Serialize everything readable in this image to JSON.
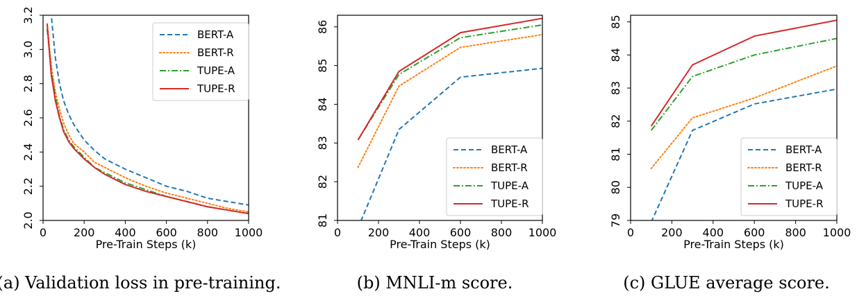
{
  "figure": {
    "captions": [
      "(a) Validation loss in pre-training.",
      "(b) MNLI-m score.",
      "(c) GLUE average score."
    ]
  },
  "colors": {
    "BERT-A": "#1f77b4",
    "BERT-R": "#ff7f0e",
    "TUPE-A": "#2ca02c",
    "TUPE-R": "#d62728"
  },
  "chart_data": [
    {
      "type": "line",
      "title": "",
      "xlabel": "Pre-Train Steps (k)",
      "ylabel": "",
      "xlim": [
        0,
        1000
      ],
      "ylim": [
        2.0,
        3.2
      ],
      "xticks": [
        0,
        200,
        400,
        600,
        800,
        1000
      ],
      "yticks": [
        2.0,
        2.2,
        2.4,
        2.6,
        2.8,
        3.0,
        3.2
      ],
      "legend_position": "top-right",
      "grid": false,
      "series": [
        {
          "name": "BERT-A",
          "style": "dashed",
          "x": [
            25,
            40,
            60,
            80,
            100,
            125,
            150,
            200,
            250,
            300,
            400,
            500,
            600,
            700,
            800,
            900,
            1000
          ],
          "y": [
            3.22,
            3.2,
            2.95,
            2.8,
            2.7,
            2.62,
            2.56,
            2.47,
            2.41,
            2.36,
            2.3,
            2.25,
            2.2,
            2.17,
            2.13,
            2.11,
            2.09
          ]
        },
        {
          "name": "BERT-R",
          "style": "dotted",
          "x": [
            20,
            40,
            60,
            80,
            100,
            125,
            150,
            200,
            250,
            300,
            400,
            500,
            600,
            700,
            800,
            900,
            1000
          ],
          "y": [
            3.15,
            2.9,
            2.75,
            2.65,
            2.57,
            2.5,
            2.45,
            2.4,
            2.34,
            2.31,
            2.25,
            2.2,
            2.16,
            2.13,
            2.1,
            2.07,
            2.05
          ]
        },
        {
          "name": "TUPE-A",
          "style": "dashdot",
          "x": [
            20,
            40,
            60,
            80,
            100,
            125,
            150,
            200,
            250,
            300,
            400,
            500,
            600,
            700,
            800,
            900,
            1000
          ],
          "y": [
            3.12,
            2.87,
            2.72,
            2.61,
            2.53,
            2.47,
            2.43,
            2.37,
            2.31,
            2.28,
            2.22,
            2.18,
            2.14,
            2.11,
            2.08,
            2.06,
            2.04
          ]
        },
        {
          "name": "TUPE-R",
          "style": "solid",
          "x": [
            20,
            40,
            60,
            80,
            100,
            125,
            150,
            200,
            250,
            300,
            400,
            500,
            600,
            700,
            800,
            900,
            1000
          ],
          "y": [
            3.15,
            2.85,
            2.7,
            2.6,
            2.52,
            2.46,
            2.42,
            2.36,
            2.31,
            2.27,
            2.21,
            2.17,
            2.14,
            2.11,
            2.08,
            2.06,
            2.04
          ]
        }
      ]
    },
    {
      "type": "line",
      "title": "",
      "xlabel": "Pre-Train Steps (k)",
      "ylabel": "",
      "xlim": [
        0,
        1000
      ],
      "ylim": [
        81,
        86.3
      ],
      "xticks": [
        0,
        200,
        400,
        600,
        800,
        1000
      ],
      "yticks": [
        81,
        82,
        83,
        84,
        85,
        86
      ],
      "legend_position": "bottom-right",
      "grid": false,
      "series": [
        {
          "name": "BERT-A",
          "style": "dashed",
          "x": [
            100,
            300,
            600,
            1000
          ],
          "y": [
            80.8,
            83.35,
            84.7,
            84.93
          ]
        },
        {
          "name": "BERT-R",
          "style": "dotted",
          "x": [
            100,
            300,
            600,
            1000
          ],
          "y": [
            82.37,
            84.47,
            85.47,
            85.8
          ]
        },
        {
          "name": "TUPE-A",
          "style": "dashdot",
          "x": [
            100,
            300,
            600,
            1000
          ],
          "y": [
            83.08,
            84.77,
            85.72,
            86.05
          ]
        },
        {
          "name": "TUPE-R",
          "style": "solid",
          "x": [
            100,
            300,
            600,
            1000
          ],
          "y": [
            83.08,
            84.85,
            85.85,
            86.22
          ]
        }
      ]
    },
    {
      "type": "line",
      "title": "",
      "xlabel": "Pre-Train Steps (k)",
      "ylabel": "",
      "xlim": [
        0,
        1000
      ],
      "ylim": [
        79,
        85.2
      ],
      "xticks": [
        0,
        200,
        400,
        600,
        800,
        1000
      ],
      "yticks": [
        79,
        80,
        81,
        82,
        83,
        84,
        85
      ],
      "legend_position": "bottom-right",
      "grid": false,
      "series": [
        {
          "name": "BERT-A",
          "style": "dashed",
          "x": [
            100,
            300,
            600,
            1000
          ],
          "y": [
            78.95,
            81.72,
            82.52,
            82.97
          ]
        },
        {
          "name": "BERT-R",
          "style": "dotted",
          "x": [
            100,
            300,
            600,
            1000
          ],
          "y": [
            80.57,
            82.1,
            82.7,
            83.67
          ]
        },
        {
          "name": "TUPE-A",
          "style": "dashdot",
          "x": [
            100,
            300,
            600,
            1000
          ],
          "y": [
            81.72,
            83.35,
            84.0,
            84.5
          ]
        },
        {
          "name": "TUPE-R",
          "style": "solid",
          "x": [
            100,
            300,
            600,
            1000
          ],
          "y": [
            81.85,
            83.7,
            84.57,
            85.05
          ]
        }
      ]
    }
  ]
}
